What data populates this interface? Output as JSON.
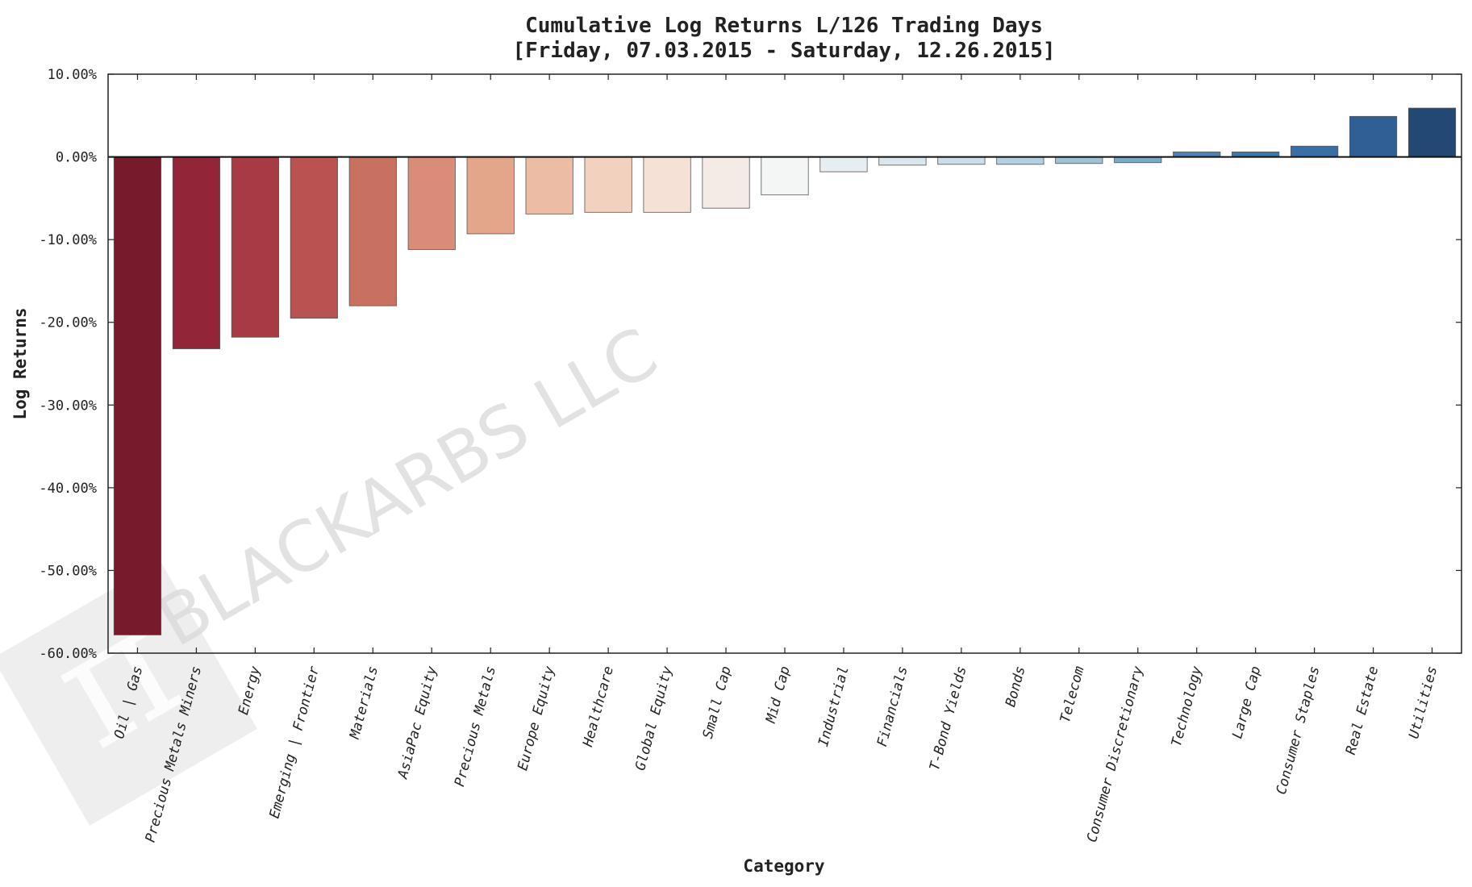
{
  "chart_data": {
    "type": "bar",
    "title": "Cumulative Log Returns L/126 Trading Days",
    "subtitle": "[Friday, 07.03.2015 - Saturday, 12.26.2015]",
    "xlabel": "Category",
    "ylabel": "Log Returns",
    "ylim": [
      -60,
      10
    ],
    "yticks": [
      10,
      0,
      -10,
      -20,
      -30,
      -40,
      -50,
      -60
    ],
    "ytick_labels": [
      "10.00%",
      "0.00%",
      "-10.00%",
      "-20.00%",
      "-30.00%",
      "-40.00%",
      "-50.00%",
      "-60.00%"
    ],
    "grid": false,
    "categories": [
      "Oil | Gas",
      "Precious Metals Miners",
      "Energy",
      "Emerging | Frontier",
      "Materials",
      "AsiaPac Equity",
      "Precious Metals",
      "Europe Equity",
      "Healthcare",
      "Global Equity",
      "Small Cap",
      "Mid Cap",
      "Industrial",
      "Financials",
      "T-Bond Yields",
      "Bonds",
      "Telecom",
      "Consumer Discretionary",
      "Technology",
      "Large Cap",
      "Consumer Staples",
      "Real Estate",
      "Utilities"
    ],
    "values": [
      -57.8,
      -23.2,
      -21.8,
      -19.5,
      -18.0,
      -11.2,
      -9.3,
      -6.9,
      -6.7,
      -6.7,
      -6.2,
      -4.6,
      -1.8,
      -1.0,
      -0.9,
      -0.9,
      -0.8,
      -0.7,
      0.6,
      0.6,
      1.3,
      4.9,
      5.9
    ],
    "colors": [
      "#761a2c",
      "#922638",
      "#a73a42",
      "#b95250",
      "#c87160",
      "#d98c77",
      "#e4a68b",
      "#ecbca4",
      "#f2d1bf",
      "#f6e1d6",
      "#f5ebe6",
      "#f4f6f6",
      "#e7eef2",
      "#dae6ed",
      "#cbdde8",
      "#b3cfe0",
      "#9cc2d8",
      "#7aa9c8",
      "#4d84b5",
      "#3f78ab",
      "#3a6fa5",
      "#2f5f95",
      "#244874"
    ],
    "watermark": "BLACKARBS LLC"
  }
}
